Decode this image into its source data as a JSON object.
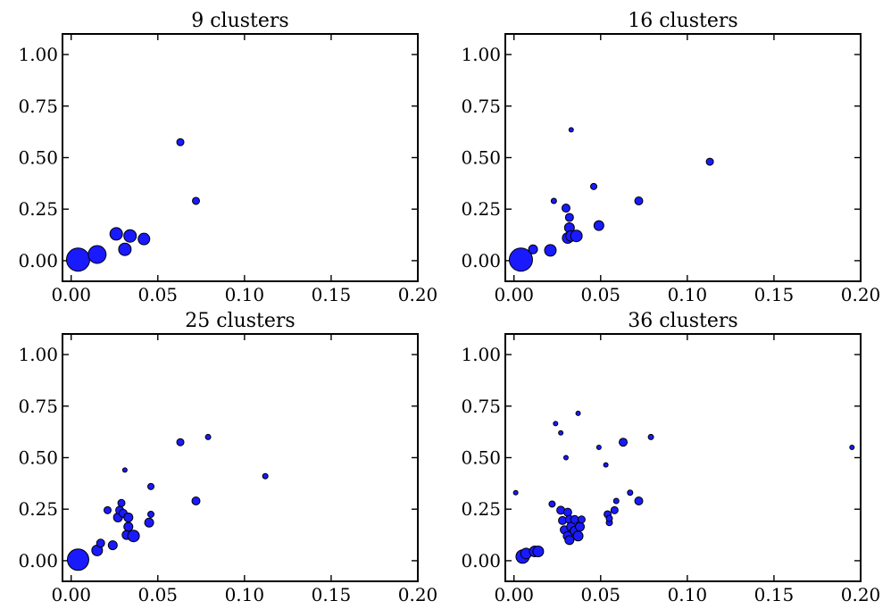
{
  "chart_data": [
    {
      "type": "scatter",
      "title": "9 clusters",
      "xlim": [
        -0.005,
        0.2
      ],
      "ylim": [
        -0.1,
        1.1
      ],
      "xticks": [
        0.0,
        0.05,
        0.1,
        0.15,
        0.2
      ],
      "xtick_labels": [
        "0.00",
        "0.05",
        "0.10",
        "0.15",
        "0.20"
      ],
      "yticks": [
        0.0,
        0.25,
        0.5,
        0.75,
        1.0
      ],
      "ytick_labels": [
        "0.00",
        "0.25",
        "0.50",
        "0.75",
        "1.00"
      ],
      "grid": false,
      "point_color": "#1a1aff",
      "points": [
        {
          "x": 0.004,
          "y": 0.005,
          "size": 13
        },
        {
          "x": 0.015,
          "y": 0.03,
          "size": 10
        },
        {
          "x": 0.026,
          "y": 0.13,
          "size": 7
        },
        {
          "x": 0.031,
          "y": 0.055,
          "size": 7
        },
        {
          "x": 0.034,
          "y": 0.12,
          "size": 7
        },
        {
          "x": 0.042,
          "y": 0.105,
          "size": 6.5
        },
        {
          "x": 0.063,
          "y": 0.575,
          "size": 4
        },
        {
          "x": 0.072,
          "y": 0.29,
          "size": 4
        }
      ]
    },
    {
      "type": "scatter",
      "title": "16 clusters",
      "xlim": [
        -0.005,
        0.2
      ],
      "ylim": [
        -0.1,
        1.1
      ],
      "xticks": [
        0.0,
        0.05,
        0.1,
        0.15,
        0.2
      ],
      "xtick_labels": [
        "0.00",
        "0.05",
        "0.10",
        "0.15",
        "0.20"
      ],
      "yticks": [
        0.0,
        0.25,
        0.5,
        0.75,
        1.0
      ],
      "ytick_labels": [
        "0.00",
        "0.25",
        "0.50",
        "0.75",
        "1.00"
      ],
      "grid": false,
      "point_color": "#1a1aff",
      "points": [
        {
          "x": 0.004,
          "y": 0.005,
          "size": 13
        },
        {
          "x": 0.011,
          "y": 0.055,
          "size": 5
        },
        {
          "x": 0.021,
          "y": 0.05,
          "size": 6.5
        },
        {
          "x": 0.023,
          "y": 0.29,
          "size": 3
        },
        {
          "x": 0.03,
          "y": 0.255,
          "size": 4.5
        },
        {
          "x": 0.031,
          "y": 0.11,
          "size": 6
        },
        {
          "x": 0.032,
          "y": 0.21,
          "size": 4.5
        },
        {
          "x": 0.032,
          "y": 0.16,
          "size": 5.5
        },
        {
          "x": 0.033,
          "y": 0.635,
          "size": 2.5
        },
        {
          "x": 0.033,
          "y": 0.12,
          "size": 6
        },
        {
          "x": 0.036,
          "y": 0.12,
          "size": 6.5
        },
        {
          "x": 0.046,
          "y": 0.36,
          "size": 3.5
        },
        {
          "x": 0.049,
          "y": 0.17,
          "size": 5.5
        },
        {
          "x": 0.072,
          "y": 0.29,
          "size": 4.5
        },
        {
          "x": 0.113,
          "y": 0.48,
          "size": 4
        }
      ]
    },
    {
      "type": "scatter",
      "title": "25 clusters",
      "xlim": [
        -0.005,
        0.2
      ],
      "ylim": [
        -0.1,
        1.1
      ],
      "xticks": [
        0.0,
        0.05,
        0.1,
        0.15,
        0.2
      ],
      "xtick_labels": [
        "0.00",
        "0.05",
        "0.10",
        "0.15",
        "0.20"
      ],
      "yticks": [
        0.0,
        0.25,
        0.5,
        0.75,
        1.0
      ],
      "ytick_labels": [
        "0.00",
        "0.25",
        "0.50",
        "0.75",
        "1.00"
      ],
      "grid": false,
      "point_color": "#1a1aff",
      "points": [
        {
          "x": 0.004,
          "y": 0.005,
          "size": 12
        },
        {
          "x": 0.015,
          "y": 0.05,
          "size": 6
        },
        {
          "x": 0.017,
          "y": 0.085,
          "size": 4.5
        },
        {
          "x": 0.021,
          "y": 0.245,
          "size": 4
        },
        {
          "x": 0.024,
          "y": 0.075,
          "size": 5
        },
        {
          "x": 0.027,
          "y": 0.21,
          "size": 5
        },
        {
          "x": 0.028,
          "y": 0.245,
          "size": 4.5
        },
        {
          "x": 0.029,
          "y": 0.28,
          "size": 4
        },
        {
          "x": 0.03,
          "y": 0.23,
          "size": 4.5
        },
        {
          "x": 0.031,
          "y": 0.44,
          "size": 2.5
        },
        {
          "x": 0.032,
          "y": 0.125,
          "size": 5
        },
        {
          "x": 0.033,
          "y": 0.165,
          "size": 5
        },
        {
          "x": 0.033,
          "y": 0.21,
          "size": 5
        },
        {
          "x": 0.036,
          "y": 0.12,
          "size": 6.5
        },
        {
          "x": 0.045,
          "y": 0.185,
          "size": 5
        },
        {
          "x": 0.046,
          "y": 0.225,
          "size": 3.5
        },
        {
          "x": 0.046,
          "y": 0.36,
          "size": 3.5
        },
        {
          "x": 0.063,
          "y": 0.575,
          "size": 4
        },
        {
          "x": 0.072,
          "y": 0.29,
          "size": 4.5
        },
        {
          "x": 0.079,
          "y": 0.6,
          "size": 3
        },
        {
          "x": 0.112,
          "y": 0.41,
          "size": 3
        }
      ]
    },
    {
      "type": "scatter",
      "title": "36 clusters",
      "xlim": [
        -0.005,
        0.2
      ],
      "ylim": [
        -0.1,
        1.1
      ],
      "xticks": [
        0.0,
        0.05,
        0.1,
        0.15,
        0.2
      ],
      "xtick_labels": [
        "0.00",
        "0.05",
        "0.10",
        "0.15",
        "0.20"
      ],
      "yticks": [
        0.0,
        0.25,
        0.5,
        0.75,
        1.0
      ],
      "ytick_labels": [
        "0.00",
        "0.25",
        "0.50",
        "0.75",
        "1.00"
      ],
      "grid": false,
      "point_color": "#1a1aff",
      "points": [
        {
          "x": 0.001,
          "y": 0.33,
          "size": 2.5
        },
        {
          "x": 0.005,
          "y": 0.02,
          "size": 7.5
        },
        {
          "x": 0.007,
          "y": 0.035,
          "size": 6
        },
        {
          "x": 0.012,
          "y": 0.045,
          "size": 6
        },
        {
          "x": 0.014,
          "y": 0.045,
          "size": 6
        },
        {
          "x": 0.022,
          "y": 0.275,
          "size": 3.5
        },
        {
          "x": 0.024,
          "y": 0.665,
          "size": 2.5
        },
        {
          "x": 0.027,
          "y": 0.62,
          "size": 2.5
        },
        {
          "x": 0.027,
          "y": 0.245,
          "size": 4.5
        },
        {
          "x": 0.028,
          "y": 0.195,
          "size": 4.5
        },
        {
          "x": 0.029,
          "y": 0.15,
          "size": 4.5
        },
        {
          "x": 0.03,
          "y": 0.5,
          "size": 2.5
        },
        {
          "x": 0.031,
          "y": 0.235,
          "size": 4.5
        },
        {
          "x": 0.031,
          "y": 0.12,
          "size": 5
        },
        {
          "x": 0.032,
          "y": 0.1,
          "size": 5
        },
        {
          "x": 0.032,
          "y": 0.2,
          "size": 4.5
        },
        {
          "x": 0.033,
          "y": 0.165,
          "size": 5
        },
        {
          "x": 0.035,
          "y": 0.145,
          "size": 5
        },
        {
          "x": 0.035,
          "y": 0.2,
          "size": 4.5
        },
        {
          "x": 0.037,
          "y": 0.715,
          "size": 2.5
        },
        {
          "x": 0.037,
          "y": 0.12,
          "size": 5.5
        },
        {
          "x": 0.038,
          "y": 0.165,
          "size": 5
        },
        {
          "x": 0.039,
          "y": 0.2,
          "size": 4
        },
        {
          "x": 0.049,
          "y": 0.55,
          "size": 2.5
        },
        {
          "x": 0.053,
          "y": 0.465,
          "size": 2.5
        },
        {
          "x": 0.054,
          "y": 0.225,
          "size": 4
        },
        {
          "x": 0.055,
          "y": 0.185,
          "size": 3.5
        },
        {
          "x": 0.055,
          "y": 0.205,
          "size": 3.5
        },
        {
          "x": 0.058,
          "y": 0.245,
          "size": 4
        },
        {
          "x": 0.059,
          "y": 0.29,
          "size": 3
        },
        {
          "x": 0.063,
          "y": 0.575,
          "size": 4.5
        },
        {
          "x": 0.067,
          "y": 0.33,
          "size": 3
        },
        {
          "x": 0.072,
          "y": 0.29,
          "size": 4.5
        },
        {
          "x": 0.079,
          "y": 0.6,
          "size": 3
        },
        {
          "x": 0.195,
          "y": 0.55,
          "size": 2.5
        }
      ]
    }
  ]
}
